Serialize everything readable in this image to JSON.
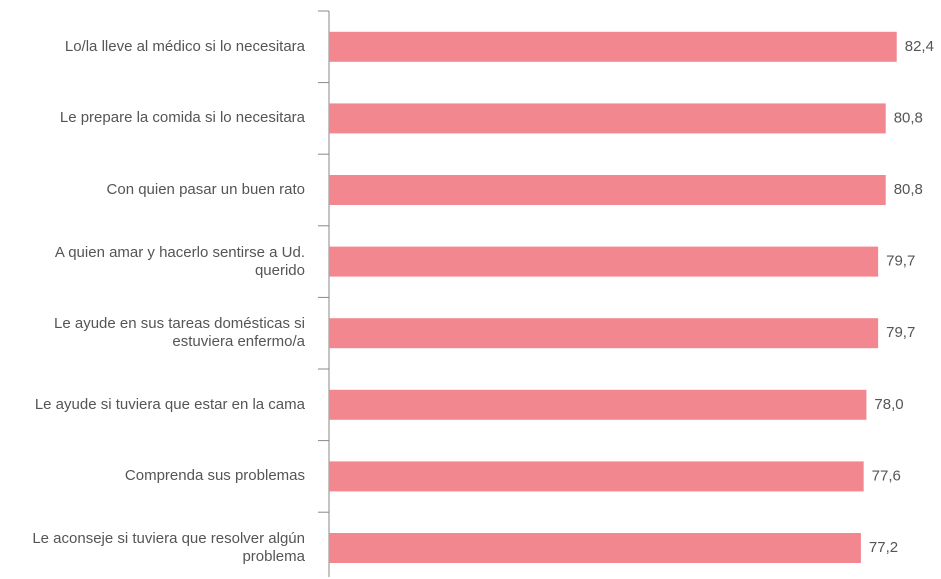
{
  "chart_data": {
    "type": "bar",
    "orientation": "horizontal",
    "categories": [
      "Lo/la lleve al médico si lo necesitara",
      "Le prepare la comida si lo necesitara",
      "Con quien pasar un buen rato",
      "A quien amar y hacerlo sentirse a Ud. querido",
      "Le ayude en sus tareas domésticas si estuviera enfermo/a",
      "Le ayude si tuviera que estar en la cama",
      "Comprenda sus problemas",
      "Le aconseje si tuviera que resolver algún problema"
    ],
    "values": [
      82.4,
      80.8,
      80.8,
      79.7,
      79.7,
      78.0,
      77.6,
      77.2
    ],
    "value_labels": [
      "82,4",
      "80,8",
      "80,8",
      "79,7",
      "79,7",
      "78,0",
      "77,6",
      "77,2"
    ],
    "color": "#f28790"
  }
}
